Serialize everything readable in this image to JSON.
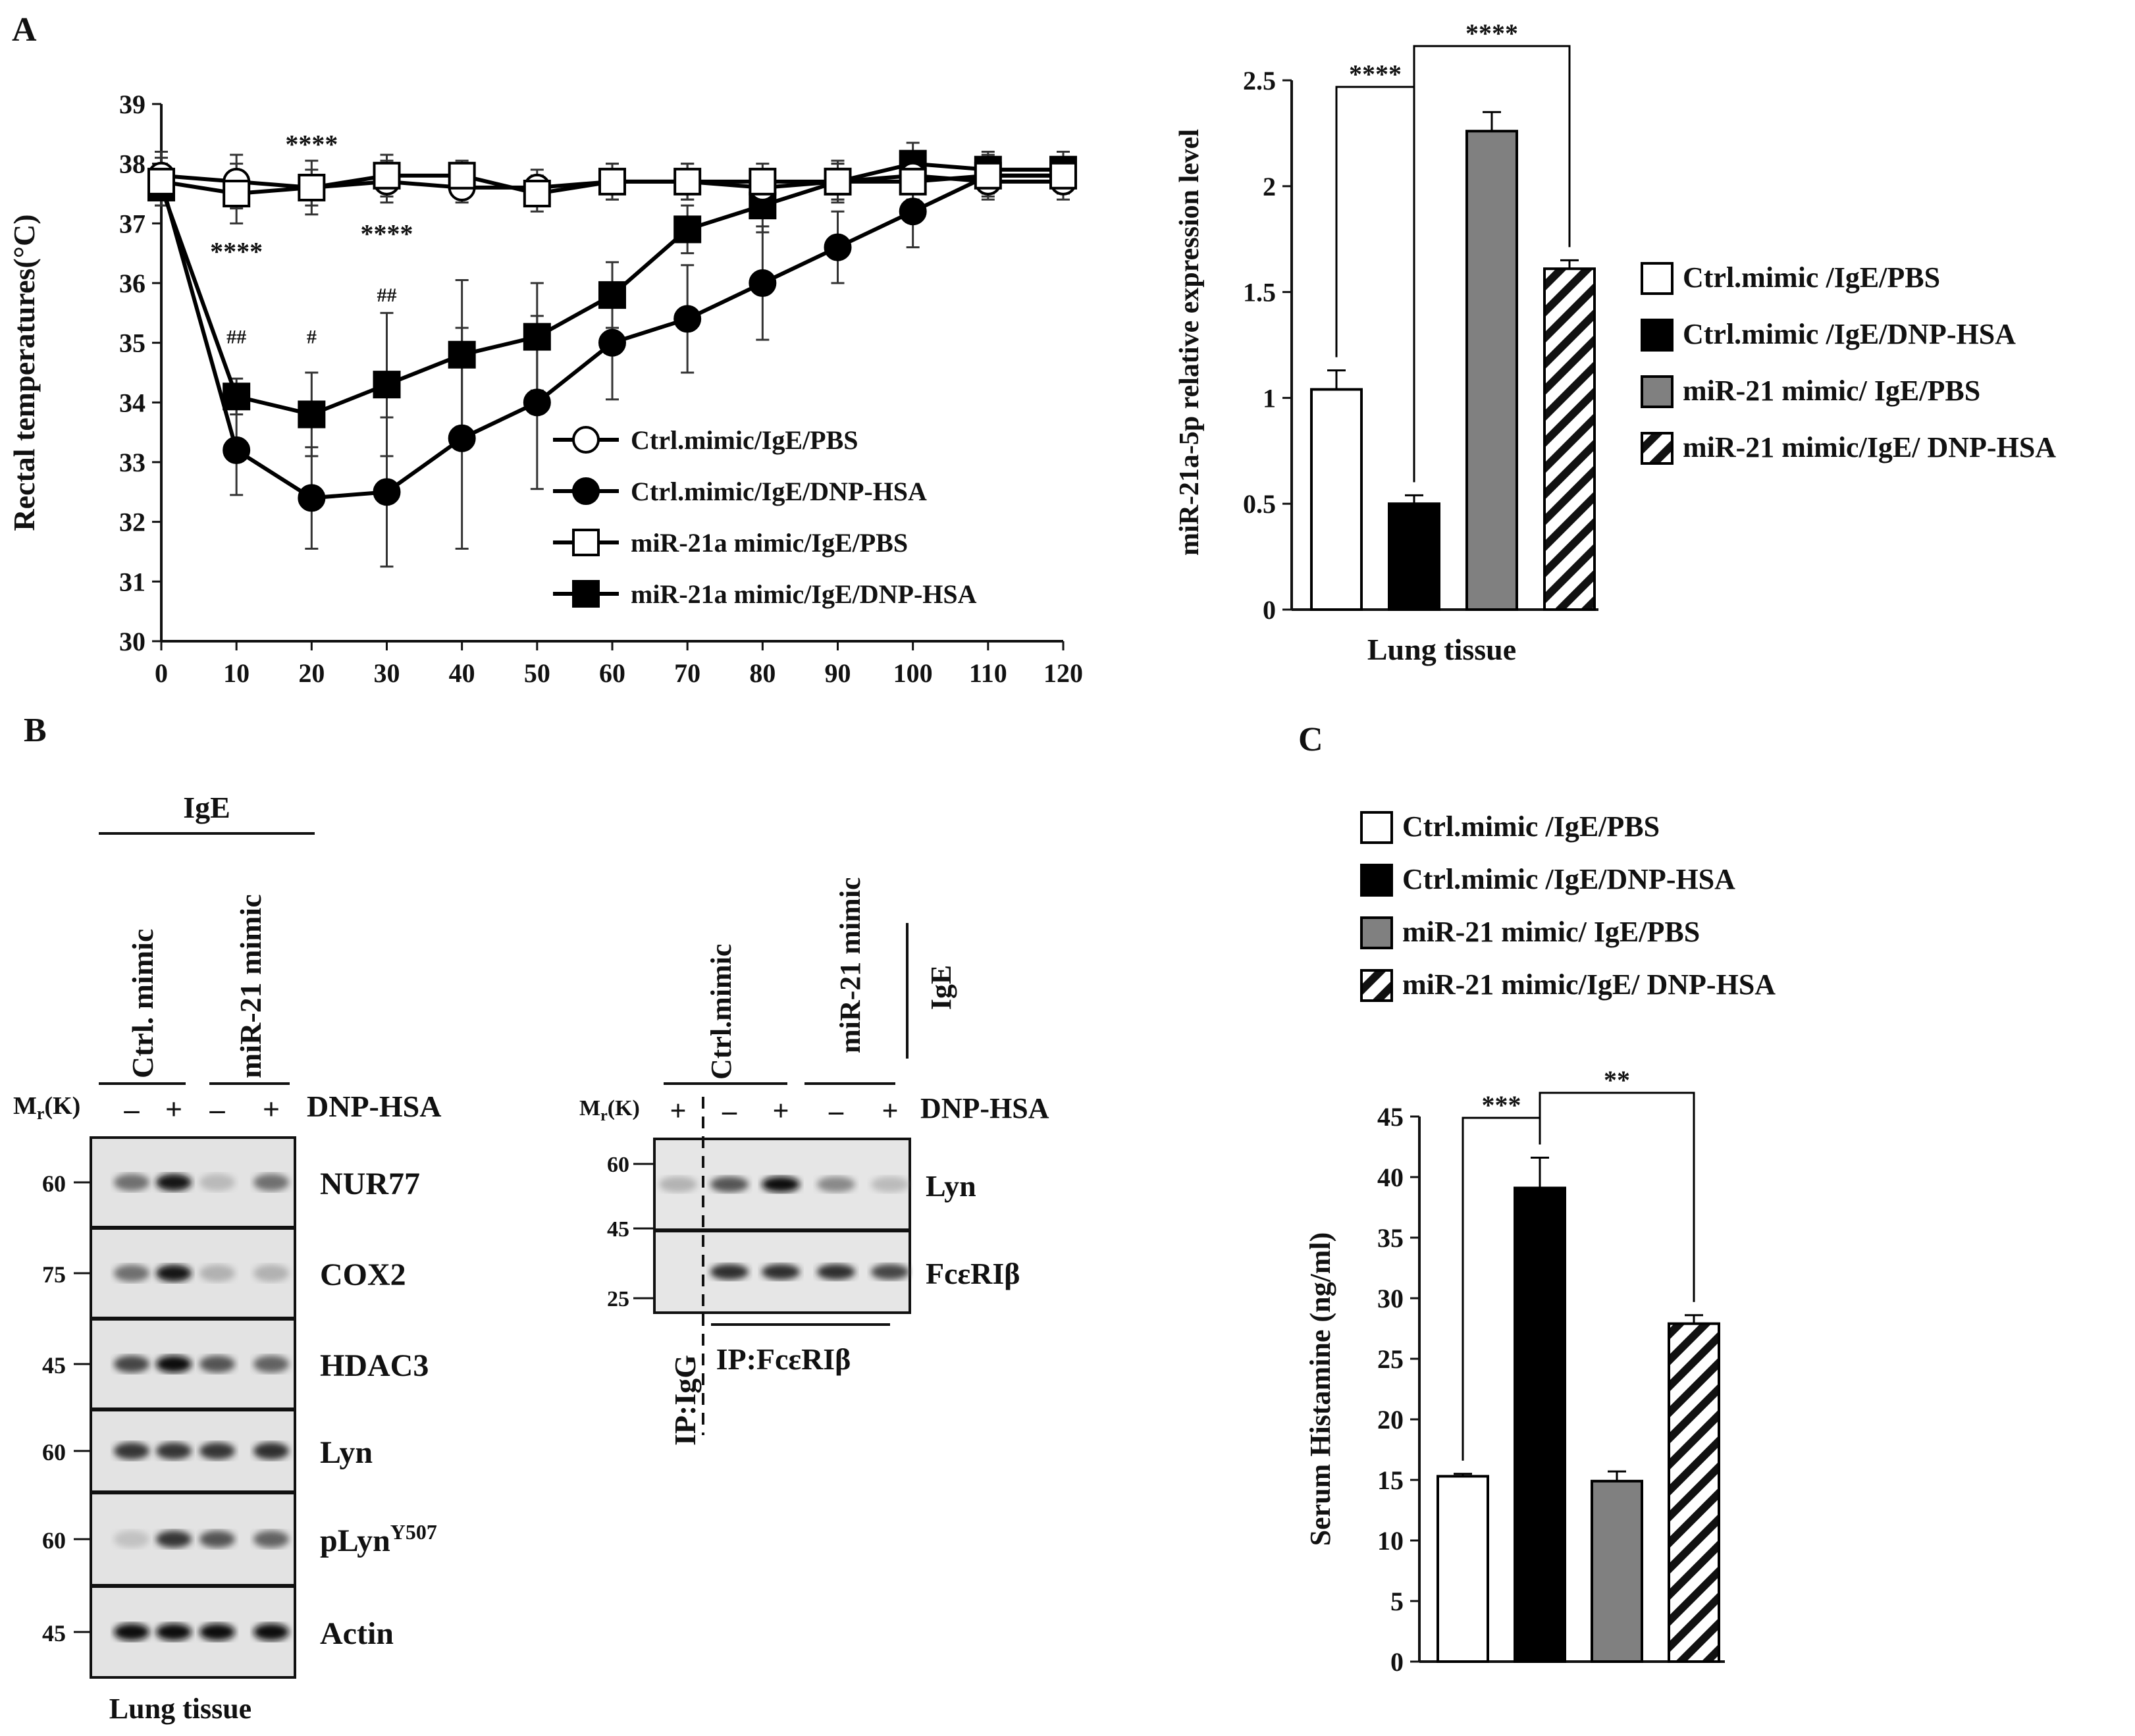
{
  "panel_labels": {
    "a": "A",
    "b": "B",
    "c": "C"
  },
  "chart_data": [
    {
      "type": "line",
      "panel": "A",
      "ylabel": "Rectal temperatures(°C)",
      "xlabel": "",
      "x": [
        0,
        10,
        20,
        30,
        40,
        50,
        60,
        70,
        80,
        90,
        100,
        110,
        120
      ],
      "xlim": [
        0,
        120
      ],
      "ylim": [
        30,
        39
      ],
      "xticks": [
        "0",
        "10",
        "20",
        "30",
        "40",
        "50",
        "60",
        "70",
        "80",
        "90",
        "100",
        "110",
        "120"
      ],
      "yticks": [
        "30",
        "31",
        "32",
        "33",
        "34",
        "35",
        "36",
        "37",
        "38",
        "39"
      ],
      "legend_position": "center-right",
      "series": [
        {
          "name": "Ctrl.mimic/IgE/PBS",
          "marker": "open-circle",
          "values": [
            37.8,
            37.7,
            37.6,
            37.7,
            37.6,
            37.6,
            37.7,
            37.7,
            37.6,
            37.7,
            37.8,
            37.7,
            37.7
          ],
          "err": [
            0.4,
            0.45,
            0.3,
            0.35,
            0.25,
            0.3,
            0.3,
            0.3,
            0.3,
            0.3,
            0.3,
            0.3,
            0.3
          ]
        },
        {
          "name": "Ctrl.mimic/IgE/DNP-HSA",
          "marker": "filled-circle",
          "values": [
            37.7,
            33.2,
            32.4,
            32.5,
            33.4,
            34.0,
            35.0,
            35.4,
            36.0,
            36.6,
            37.2,
            37.8,
            37.8
          ],
          "err": [
            0.4,
            0.75,
            0.85,
            1.25,
            1.85,
            1.45,
            0.95,
            0.9,
            0.95,
            0.6,
            0.6,
            0.35,
            0.3
          ]
        },
        {
          "name": "miR-21a mimic/IgE/PBS",
          "marker": "open-square",
          "values": [
            37.7,
            37.5,
            37.6,
            37.8,
            37.8,
            37.5,
            37.7,
            37.7,
            37.7,
            37.7,
            37.7,
            37.8,
            37.8
          ],
          "err": [
            0.3,
            0.5,
            0.45,
            0.35,
            0.25,
            0.3,
            0.3,
            0.3,
            0.3,
            0.3,
            0.3,
            0.3,
            0.3
          ]
        },
        {
          "name": "miR-21a mimic/IgE/DNP-HSA",
          "marker": "filled-square",
          "values": [
            37.6,
            34.1,
            33.8,
            34.3,
            34.8,
            35.1,
            35.8,
            36.9,
            37.3,
            37.7,
            38.0,
            37.9,
            37.9
          ],
          "err": [
            0.3,
            0.3,
            0.7,
            1.2,
            1.25,
            0.9,
            0.55,
            0.4,
            0.45,
            0.35,
            0.35,
            0.3,
            0.3
          ]
        }
      ],
      "annotations": [
        {
          "text": "****",
          "x": 20,
          "y": 38.4
        },
        {
          "text": "****",
          "x": 10,
          "y": 36.6
        },
        {
          "text": "****",
          "x": 30,
          "y": 36.9
        },
        {
          "text": "##",
          "x": 10,
          "y": 35.1
        },
        {
          "text": "#",
          "x": 20,
          "y": 35.1
        },
        {
          "text": "##",
          "x": 30,
          "y": 35.8
        }
      ]
    },
    {
      "type": "bar",
      "panel": "A",
      "ylabel": "miR-21a-5p relative expression level",
      "xlabel": "Lung tissue",
      "ylim": [
        0,
        2.5
      ],
      "yticks": [
        "0",
        "0.5",
        "1",
        "1.5",
        "2",
        "2.5"
      ],
      "categories": [
        "Ctrl.mimic /IgE/PBS",
        "Ctrl.mimic /IgE/DNP-HSA",
        "miR-21 mimic/ IgE/PBS",
        "miR-21 mimic/IgE/ DNP-HSA"
      ],
      "values": [
        1.04,
        0.5,
        2.26,
        1.61
      ],
      "err": [
        0.09,
        0.04,
        0.09,
        0.04
      ],
      "fills": [
        "white",
        "black",
        "gray",
        "hatched"
      ],
      "significance": [
        {
          "text": "****",
          "from": 0,
          "to": 1
        },
        {
          "text": "****",
          "from": 1,
          "to": 3
        }
      ],
      "legend_position": "right"
    },
    {
      "type": "bar",
      "panel": "C",
      "ylabel": "Serum Histamine (ng/ml)",
      "xlabel": "",
      "ylim": [
        0,
        45
      ],
      "yticks": [
        "0",
        "5",
        "10",
        "15",
        "20",
        "25",
        "30",
        "35",
        "40",
        "45"
      ],
      "categories": [
        "Ctrl.mimic /IgE/PBS",
        "Ctrl.mimic /IgE/DNP-HSA",
        "miR-21 mimic/ IgE/PBS",
        "miR-21 mimic/IgE/ DNP-HSA"
      ],
      "values": [
        15.3,
        39.1,
        14.9,
        27.9
      ],
      "err": [
        0.2,
        2.5,
        0.8,
        0.7
      ],
      "fills": [
        "white",
        "black",
        "gray",
        "hatched"
      ],
      "significance": [
        {
          "text": "***",
          "from": 0,
          "to": 1
        },
        {
          "text": "**",
          "from": 1,
          "to": 3
        }
      ],
      "legend_position": "top"
    }
  ],
  "blot_left": {
    "group_label": "IgE",
    "col_groups": [
      "Ctrl. mimic",
      "miR-21 mimic"
    ],
    "treatment_label": "DNP-HSA",
    "mr_label": "M",
    "mr_sub": "r",
    "mr_unit": "(K)",
    "signs": [
      "–",
      "+",
      "–",
      "+"
    ],
    "bands": [
      {
        "name": "NUR77",
        "marker": "60",
        "intensity": [
          0.45,
          0.85,
          0.1,
          0.45
        ]
      },
      {
        "name": "COX2",
        "marker": "75",
        "intensity": [
          0.45,
          0.85,
          0.15,
          0.15
        ]
      },
      {
        "name": "HDAC3",
        "marker": "45",
        "intensity": [
          0.6,
          0.95,
          0.55,
          0.5
        ]
      },
      {
        "name": "Lyn",
        "marker": "60",
        "intensity": [
          0.65,
          0.65,
          0.65,
          0.7
        ]
      },
      {
        "name": "pLyn",
        "superscript": "Y507",
        "marker": "60",
        "intensity": [
          0.05,
          0.65,
          0.55,
          0.5
        ]
      },
      {
        "name": "Actin",
        "marker": "45",
        "intensity": [
          0.95,
          0.95,
          0.95,
          0.95
        ]
      }
    ],
    "footer": "Lung tissue"
  },
  "blot_right": {
    "col_groups": [
      "Ctrl.mimic",
      "miR-21 mimic"
    ],
    "side_label": "IgE",
    "treatment_label": "DNP-HSA",
    "signs": [
      "+",
      "–",
      "+",
      "–",
      "+"
    ],
    "markers": [
      "60",
      "45",
      "25"
    ],
    "bands": [
      {
        "name": "Lyn",
        "intensity": [
          0.15,
          0.55,
          0.95,
          0.35,
          0.1
        ]
      },
      {
        "name": "FcεRIβ",
        "intensity": [
          0.0,
          0.7,
          0.7,
          0.7,
          0.6
        ]
      }
    ],
    "ip_labels": [
      "IP:IgG",
      "IP:FcεRIβ"
    ]
  }
}
